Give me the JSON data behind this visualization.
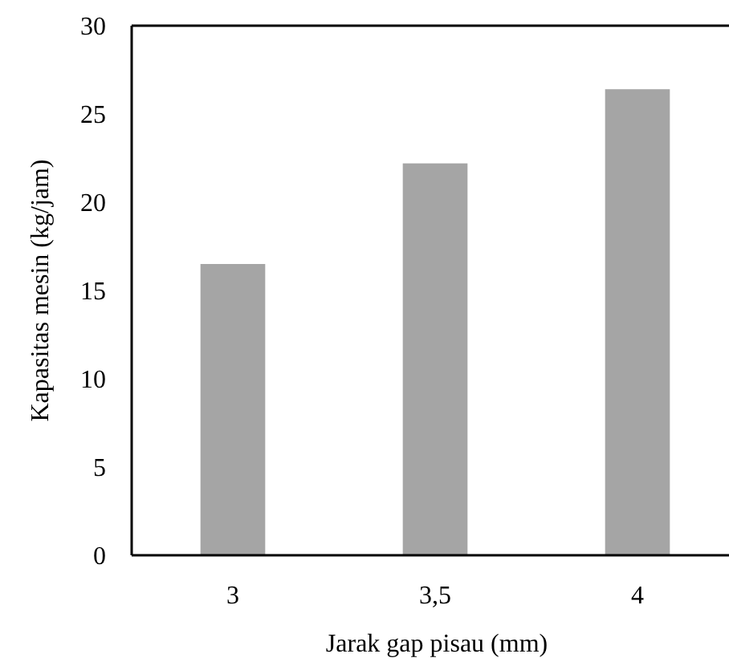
{
  "chart_data": {
    "type": "bar",
    "xlabel": "Jarak gap pisau (mm)",
    "ylabel": "Kapasitas mesin (kg/jam)",
    "categories": [
      "3",
      "3,5",
      "4"
    ],
    "values": [
      16.5,
      22.2,
      26.4
    ],
    "color": "#a5a5a5",
    "ylim": [
      0,
      30
    ],
    "yticks": [
      0,
      5,
      10,
      15,
      20,
      25,
      30
    ],
    "grid": false
  }
}
